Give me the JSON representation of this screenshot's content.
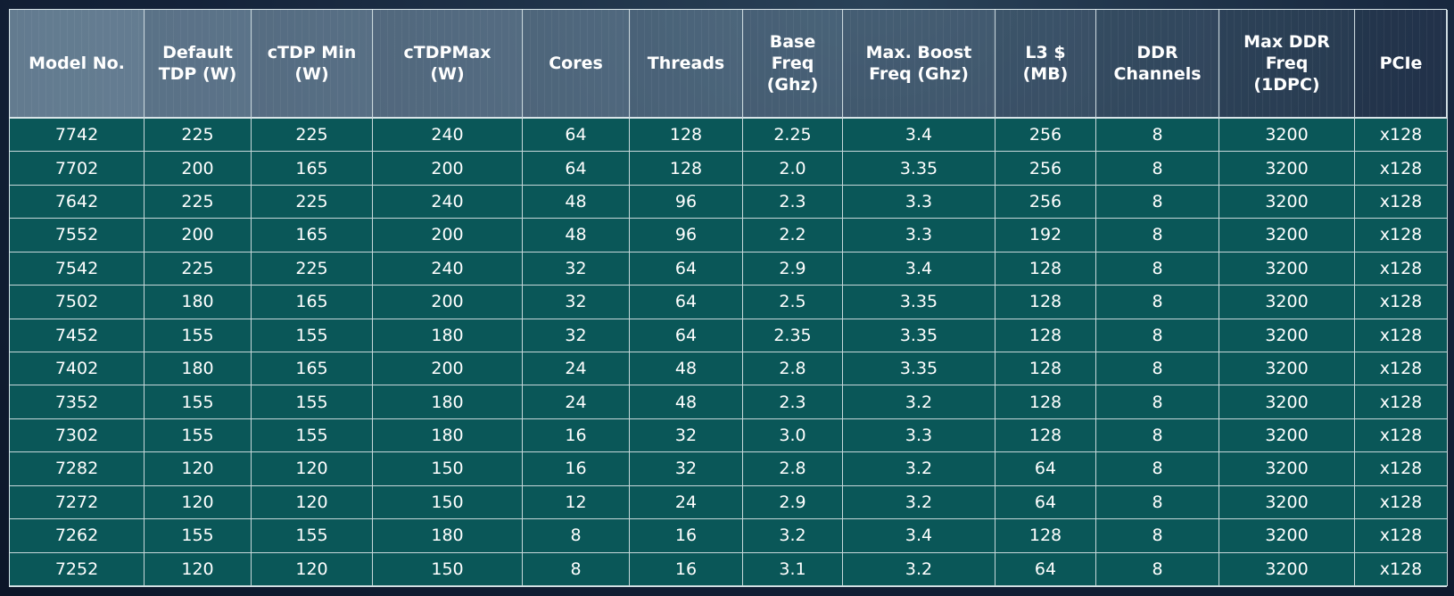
{
  "table": {
    "headers": [
      [
        "Model No."
      ],
      [
        "Default",
        "TDP (W)"
      ],
      [
        "cTDP Min",
        "(W)"
      ],
      [
        "cTDPMax",
        "(W)"
      ],
      [
        "Cores"
      ],
      [
        "Threads"
      ],
      [
        "Base",
        "Freq",
        "(Ghz)"
      ],
      [
        "Max. Boost",
        "Freq (Ghz)"
      ],
      [
        "L3 $",
        "(MB)"
      ],
      [
        "DDR",
        "Channels"
      ],
      [
        "Max DDR",
        "Freq",
        "(1DPC)"
      ],
      [
        "PCIe"
      ]
    ],
    "rows": [
      [
        "7742",
        "225",
        "225",
        "240",
        "64",
        "128",
        "2.25",
        "3.4",
        "256",
        "8",
        "3200",
        "x128"
      ],
      [
        "7702",
        "200",
        "165",
        "200",
        "64",
        "128",
        "2.0",
        "3.35",
        "256",
        "8",
        "3200",
        "x128"
      ],
      [
        "7642",
        "225",
        "225",
        "240",
        "48",
        "96",
        "2.3",
        "3.3",
        "256",
        "8",
        "3200",
        "x128"
      ],
      [
        "7552",
        "200",
        "165",
        "200",
        "48",
        "96",
        "2.2",
        "3.3",
        "192",
        "8",
        "3200",
        "x128"
      ],
      [
        "7542",
        "225",
        "225",
        "240",
        "32",
        "64",
        "2.9",
        "3.4",
        "128",
        "8",
        "3200",
        "x128"
      ],
      [
        "7502",
        "180",
        "165",
        "200",
        "32",
        "64",
        "2.5",
        "3.35",
        "128",
        "8",
        "3200",
        "x128"
      ],
      [
        "7452",
        "155",
        "155",
        "180",
        "32",
        "64",
        "2.35",
        "3.35",
        "128",
        "8",
        "3200",
        "x128"
      ],
      [
        "7402",
        "180",
        "165",
        "200",
        "24",
        "48",
        "2.8",
        "3.35",
        "128",
        "8",
        "3200",
        "x128"
      ],
      [
        "7352",
        "155",
        "155",
        "180",
        "24",
        "48",
        "2.3",
        "3.2",
        "128",
        "8",
        "3200",
        "x128"
      ],
      [
        "7302",
        "155",
        "155",
        "180",
        "16",
        "32",
        "3.0",
        "3.3",
        "128",
        "8",
        "3200",
        "x128"
      ],
      [
        "7282",
        "120",
        "120",
        "150",
        "16",
        "32",
        "2.8",
        "3.2",
        "64",
        "8",
        "3200",
        "x128"
      ],
      [
        "7272",
        "120",
        "120",
        "150",
        "12",
        "24",
        "2.9",
        "3.2",
        "64",
        "8",
        "3200",
        "x128"
      ],
      [
        "7262",
        "155",
        "155",
        "180",
        "8",
        "16",
        "3.2",
        "3.4",
        "128",
        "8",
        "3200",
        "x128"
      ],
      [
        "7252",
        "120",
        "120",
        "150",
        "8",
        "16",
        "3.1",
        "3.2",
        "64",
        "8",
        "3200",
        "x128"
      ]
    ]
  }
}
